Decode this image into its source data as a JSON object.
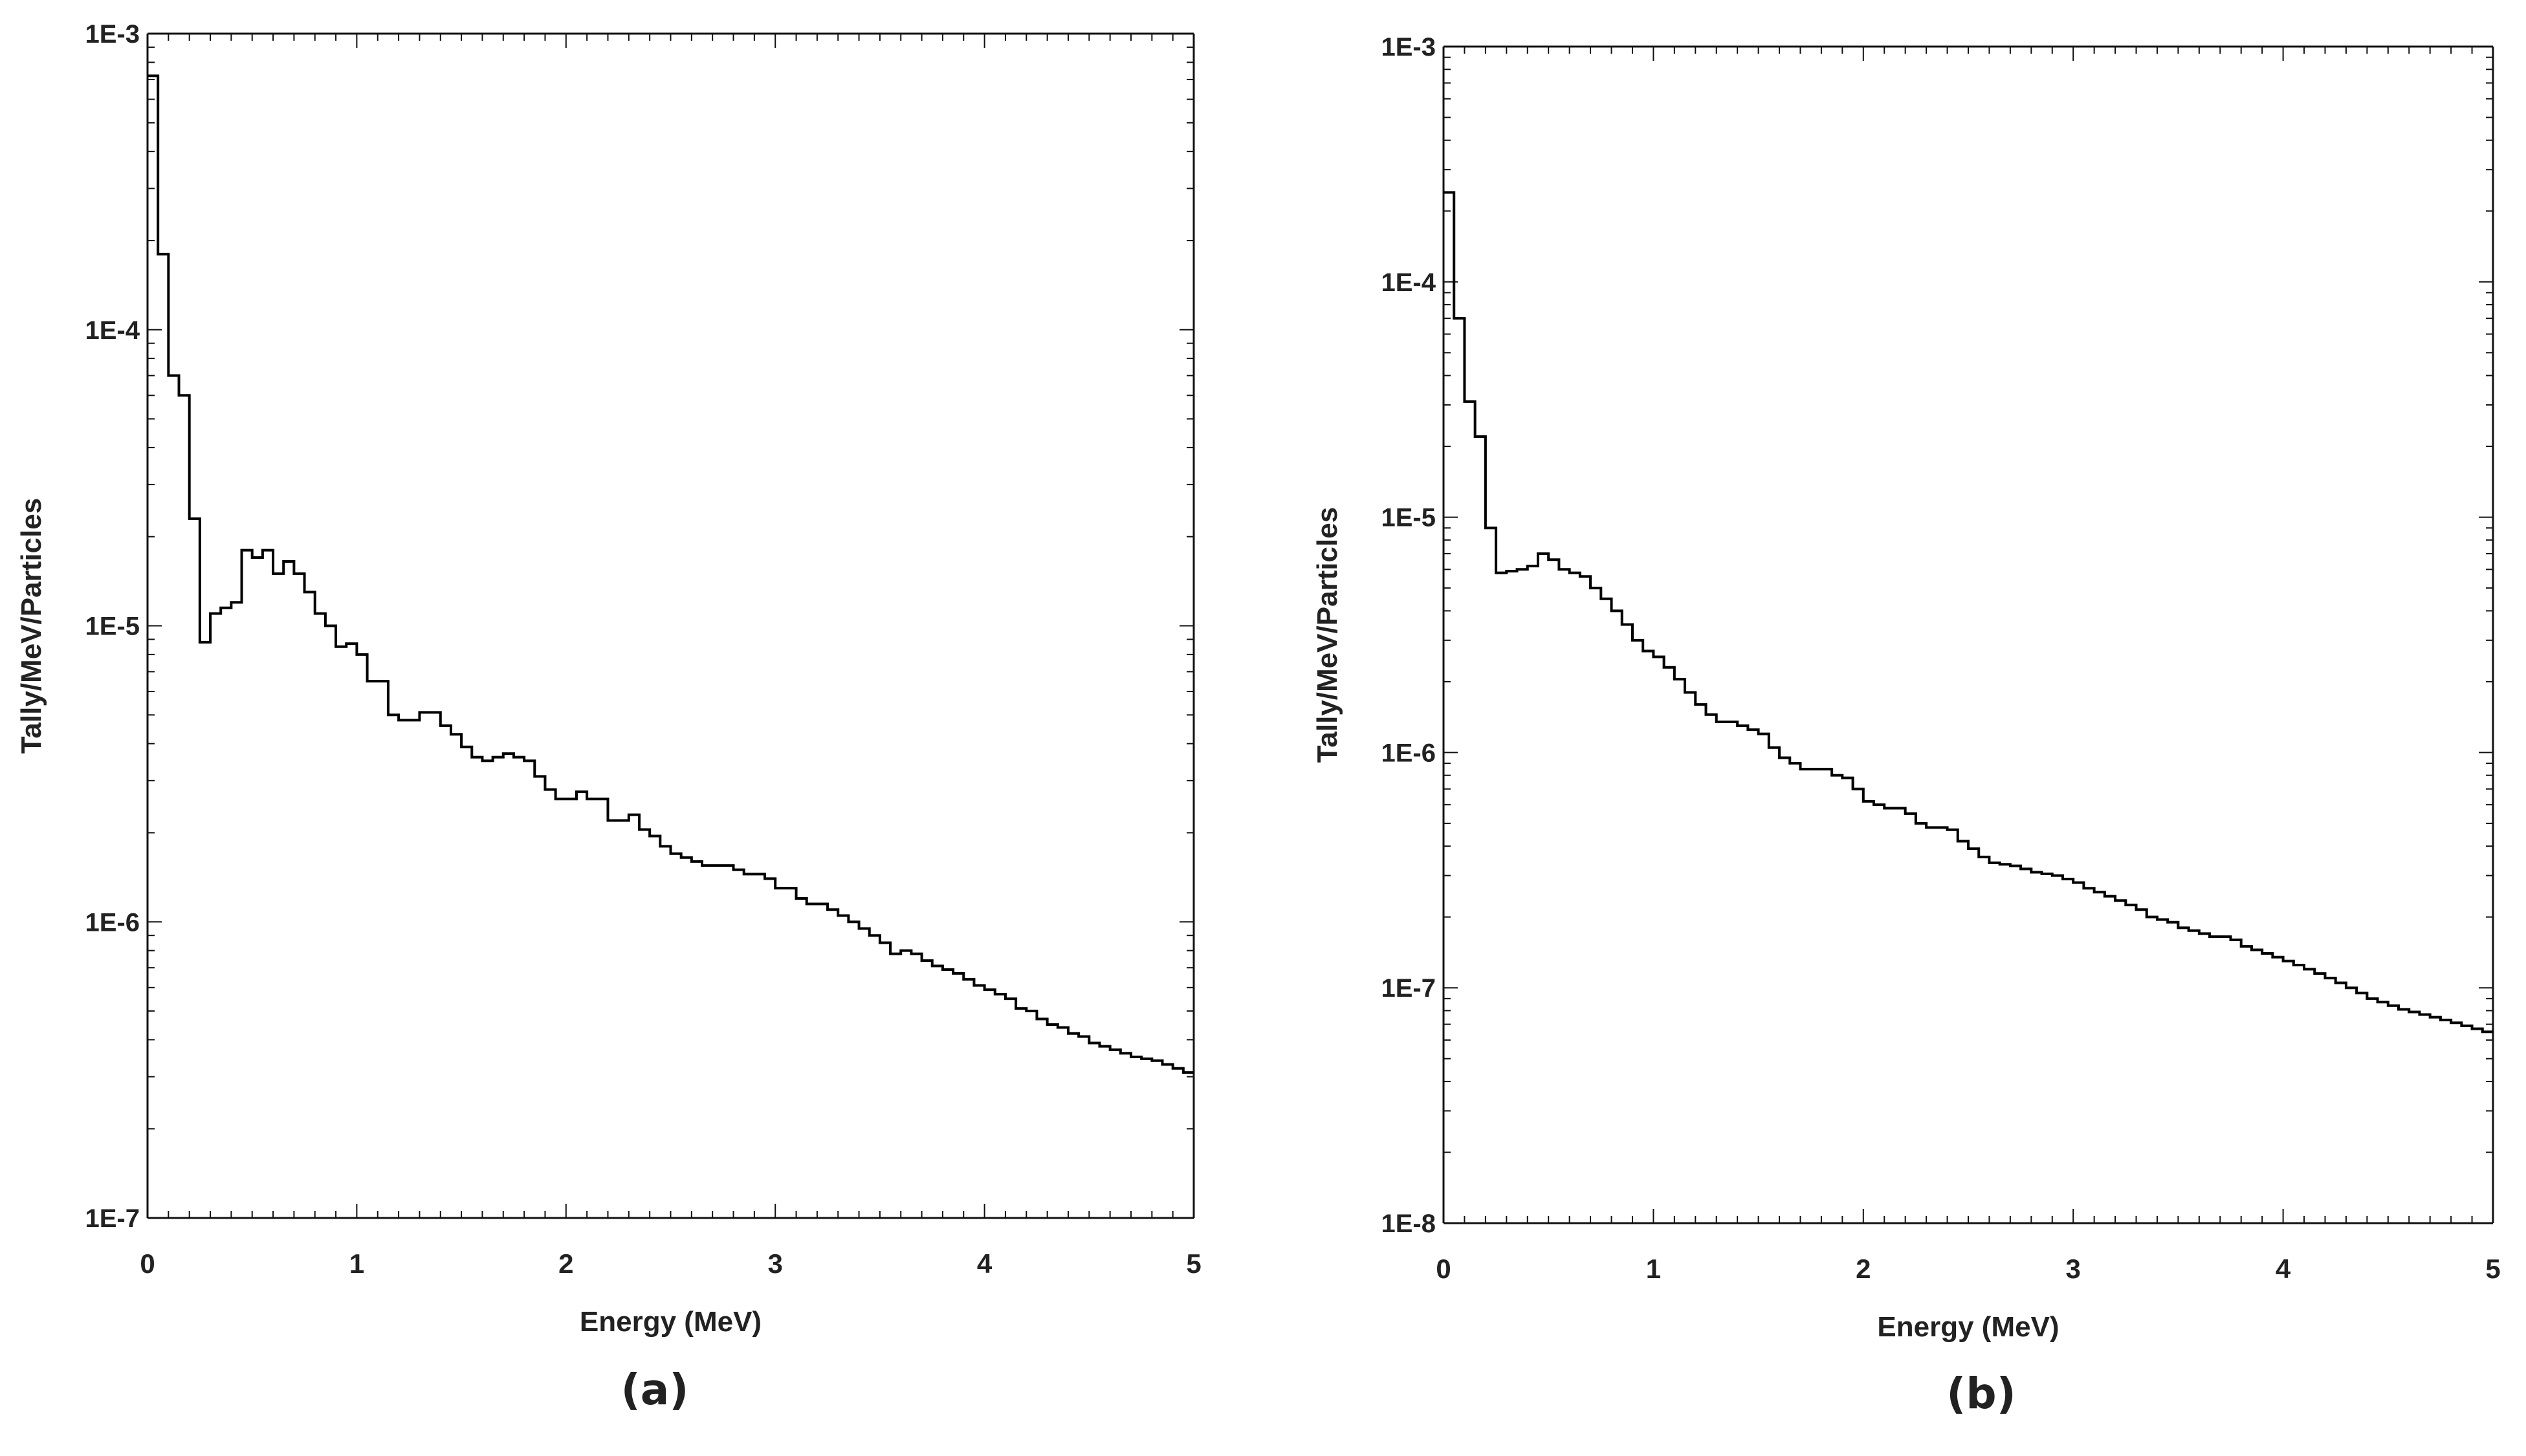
{
  "chart_data": [
    {
      "type": "line",
      "step": true,
      "title": "",
      "xlabel": "Energy (MeV)",
      "ylabel": "Tally/MeV/Particles",
      "xlim": [
        0,
        5
      ],
      "ylim": [
        1e-07,
        0.001
      ],
      "yscale": "log",
      "xticks": [
        "0",
        "1",
        "2",
        "3",
        "4",
        "5"
      ],
      "yticks": [
        "1E-7",
        "1E-6",
        "1E-5",
        "1E-4",
        "1E-3"
      ],
      "grid": false,
      "series": [
        {
          "x": [
            0,
            0.05,
            0.1,
            0.15,
            0.2,
            0.25,
            0.3,
            0.35,
            0.4,
            0.45,
            0.5,
            0.55,
            0.6,
            0.65,
            0.7,
            0.75,
            0.8,
            0.85,
            0.9,
            0.95,
            1.0,
            1.05,
            1.1,
            1.15,
            1.2,
            1.25,
            1.3,
            1.35,
            1.4,
            1.45,
            1.5,
            1.55,
            1.6,
            1.65,
            1.7,
            1.75,
            1.8,
            1.85,
            1.9,
            1.95,
            2.0,
            2.05,
            2.1,
            2.15,
            2.2,
            2.25,
            2.3,
            2.35,
            2.4,
            2.45,
            2.5,
            2.55,
            2.6,
            2.65,
            2.7,
            2.75,
            2.8,
            2.85,
            2.9,
            2.95,
            3.0,
            3.05,
            3.1,
            3.15,
            3.2,
            3.25,
            3.3,
            3.35,
            3.4,
            3.45,
            3.5,
            3.55,
            3.6,
            3.65,
            3.7,
            3.75,
            3.8,
            3.85,
            3.9,
            3.95,
            4.0,
            4.05,
            4.1,
            4.15,
            4.2,
            4.25,
            4.3,
            4.35,
            4.4,
            4.45,
            4.5,
            4.55,
            4.6,
            4.65,
            4.7,
            4.75,
            4.8,
            4.85,
            4.9,
            4.95,
            5.0
          ],
          "y": [
            0.00072,
            0.00018,
            7e-05,
            6e-05,
            2.3e-05,
            8.8e-06,
            1.1e-05,
            1.15e-05,
            1.2e-05,
            1.8e-05,
            1.7e-05,
            1.8e-05,
            1.5e-05,
            1.65e-05,
            1.5e-05,
            1.3e-05,
            1.1e-05,
            1e-05,
            8.5e-06,
            8.7e-06,
            8e-06,
            6.5e-06,
            6.5e-06,
            5e-06,
            4.8e-06,
            4.8e-06,
            5.1e-06,
            5.1e-06,
            4.6e-06,
            4.3e-06,
            3.9e-06,
            3.6e-06,
            3.5e-06,
            3.6e-06,
            3.7e-06,
            3.6e-06,
            3.5e-06,
            3.1e-06,
            2.8e-06,
            2.6e-06,
            2.6e-06,
            2.75e-06,
            2.6e-06,
            2.6e-06,
            2.2e-06,
            2.2e-06,
            2.3e-06,
            2.05e-06,
            1.95e-06,
            1.8e-06,
            1.7e-06,
            1.65e-06,
            1.6e-06,
            1.55e-06,
            1.55e-06,
            1.55e-06,
            1.5e-06,
            1.45e-06,
            1.45e-06,
            1.4e-06,
            1.3e-06,
            1.3e-06,
            1.2e-06,
            1.15e-06,
            1.15e-06,
            1.1e-06,
            1.05e-06,
            1e-06,
            9.5e-07,
            9e-07,
            8.5e-07,
            7.8e-07,
            8e-07,
            7.8e-07,
            7.4e-07,
            7.1e-07,
            6.9e-07,
            6.7e-07,
            6.4e-07,
            6.1e-07,
            5.9e-07,
            5.7e-07,
            5.5e-07,
            5.1e-07,
            5e-07,
            4.7e-07,
            4.5e-07,
            4.4e-07,
            4.2e-07,
            4.1e-07,
            3.9e-07,
            3.8e-07,
            3.7e-07,
            3.6e-07,
            3.5e-07,
            3.45e-07,
            3.4e-07,
            3.3e-07,
            3.2e-07,
            3.1e-07,
            3.1e-07
          ]
        }
      ]
    },
    {
      "type": "line",
      "step": true,
      "title": "",
      "xlabel": "Energy (MeV)",
      "ylabel": "Tally/MeV/Particles",
      "xlim": [
        0,
        5
      ],
      "ylim": [
        1e-08,
        0.001
      ],
      "yscale": "log",
      "xticks": [
        "0",
        "1",
        "2",
        "3",
        "4",
        "5"
      ],
      "yticks": [
        "1E-8",
        "1E-7",
        "1E-6",
        "1E-5",
        "1E-4",
        "1E-3"
      ],
      "grid": false,
      "series": [
        {
          "x": [
            0,
            0.05,
            0.1,
            0.15,
            0.2,
            0.25,
            0.3,
            0.35,
            0.4,
            0.45,
            0.5,
            0.55,
            0.6,
            0.65,
            0.7,
            0.75,
            0.8,
            0.85,
            0.9,
            0.95,
            1.0,
            1.05,
            1.1,
            1.15,
            1.2,
            1.25,
            1.3,
            1.35,
            1.4,
            1.45,
            1.5,
            1.55,
            1.6,
            1.65,
            1.7,
            1.75,
            1.8,
            1.85,
            1.9,
            1.95,
            2.0,
            2.05,
            2.1,
            2.15,
            2.2,
            2.25,
            2.3,
            2.35,
            2.4,
            2.45,
            2.5,
            2.55,
            2.6,
            2.65,
            2.7,
            2.75,
            2.8,
            2.85,
            2.9,
            2.95,
            3.0,
            3.05,
            3.1,
            3.15,
            3.2,
            3.25,
            3.3,
            3.35,
            3.4,
            3.45,
            3.5,
            3.55,
            3.6,
            3.65,
            3.7,
            3.75,
            3.8,
            3.85,
            3.9,
            3.95,
            4.0,
            4.05,
            4.1,
            4.15,
            4.2,
            4.25,
            4.3,
            4.35,
            4.4,
            4.45,
            4.5,
            4.55,
            4.6,
            4.65,
            4.7,
            4.75,
            4.8,
            4.85,
            4.9,
            4.95,
            5.0
          ],
          "y": [
            0.00024,
            7e-05,
            3.1e-05,
            2.2e-05,
            9e-06,
            5.8e-06,
            5.9e-06,
            6e-06,
            6.2e-06,
            7e-06,
            6.6e-06,
            6e-06,
            5.8e-06,
            5.6e-06,
            5e-06,
            4.5e-06,
            4e-06,
            3.5e-06,
            3e-06,
            2.7e-06,
            2.55e-06,
            2.3e-06,
            2.05e-06,
            1.8e-06,
            1.6e-06,
            1.45e-06,
            1.35e-06,
            1.35e-06,
            1.3e-06,
            1.25e-06,
            1.2e-06,
            1.05e-06,
            9.5e-07,
            9e-07,
            8.5e-07,
            8.5e-07,
            8.5e-07,
            8e-07,
            7.8e-07,
            7e-07,
            6.2e-07,
            6e-07,
            5.8e-07,
            5.8e-07,
            5.5e-07,
            5e-07,
            4.8e-07,
            4.8e-07,
            4.7e-07,
            4.2e-07,
            3.9e-07,
            3.6e-07,
            3.4e-07,
            3.35e-07,
            3.3e-07,
            3.2e-07,
            3.1e-07,
            3.05e-07,
            3e-07,
            2.9e-07,
            2.8e-07,
            2.65e-07,
            2.55e-07,
            2.45e-07,
            2.35e-07,
            2.25e-07,
            2.15e-07,
            2e-07,
            1.95e-07,
            1.9e-07,
            1.8e-07,
            1.75e-07,
            1.7e-07,
            1.65e-07,
            1.65e-07,
            1.6e-07,
            1.5e-07,
            1.45e-07,
            1.4e-07,
            1.35e-07,
            1.3e-07,
            1.25e-07,
            1.2e-07,
            1.15e-07,
            1.1e-07,
            1.05e-07,
            1e-07,
            9.5e-08,
            9e-08,
            8.7e-08,
            8.4e-08,
            8.1e-08,
            7.9e-08,
            7.7e-08,
            7.5e-08,
            7.3e-08,
            7.1e-08,
            6.9e-08,
            6.7e-08,
            6.5e-08,
            6.4e-08
          ]
        }
      ]
    }
  ],
  "panel_labels": [
    "(a)",
    "(b)"
  ]
}
